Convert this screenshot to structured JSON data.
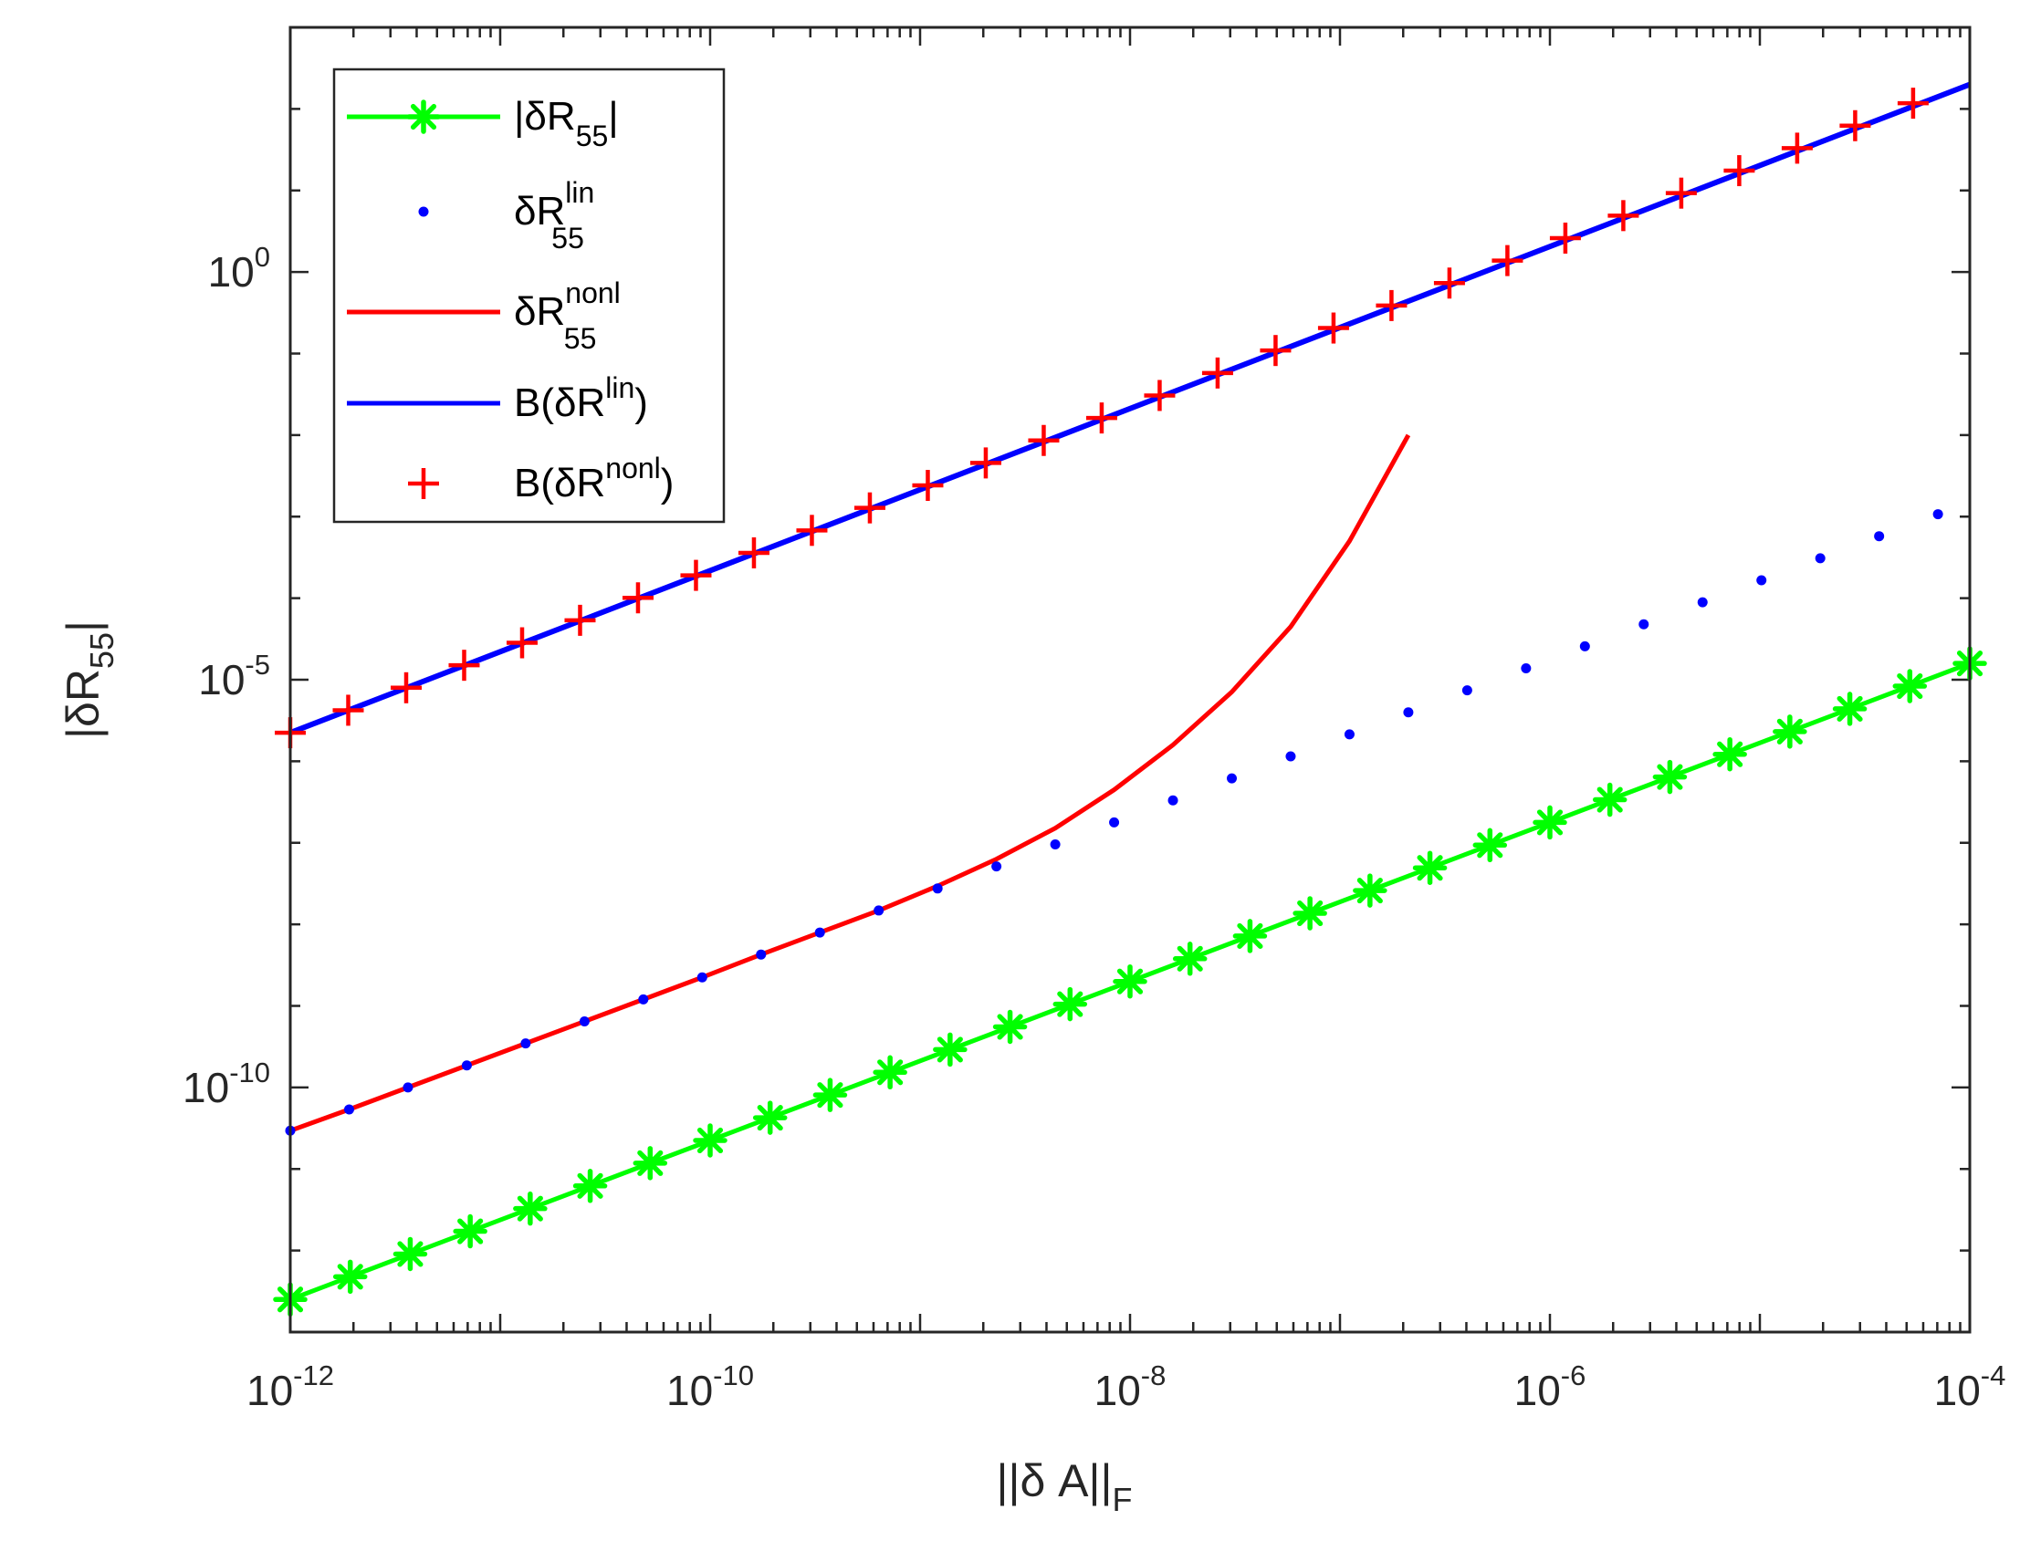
{
  "chart_data": {
    "type": "line",
    "xscale": "log",
    "yscale": "log",
    "xlabel": "||δ A||",
    "xlabel_sub": "F",
    "ylabel": "|δR",
    "ylabel_sub": "55",
    "ylabel_end": "|",
    "xlim": [
      1e-12,
      0.0001
    ],
    "ylim": [
      1e-13,
      1000.0
    ],
    "grid": false,
    "legend_position": "top-left",
    "x_ticks": [
      {
        "base": "10",
        "exp": "-12"
      },
      {
        "base": "10",
        "exp": "-10"
      },
      {
        "base": "10",
        "exp": "-8"
      },
      {
        "base": "10",
        "exp": "-6"
      },
      {
        "base": "10",
        "exp": "-4"
      }
    ],
    "y_ticks": [
      {
        "base": "10",
        "exp": "-10"
      },
      {
        "base": "10",
        "exp": "-5"
      },
      {
        "base": "10",
        "exp": "0"
      }
    ],
    "x_log_start": -12,
    "x_log_step": 0.2803,
    "series": [
      {
        "name": "|δR55|",
        "legend": {
          "prefix": "|δR",
          "sub": "55",
          "sup": "",
          "suffix": "|"
        },
        "style": "line-star",
        "color": "#00ff00",
        "x_range": [
          -12,
          -4
        ],
        "y_range": [
          -12.6,
          -4.8
        ]
      },
      {
        "name": "δR55 lin",
        "legend": {
          "prefix": "δR",
          "sub": "55",
          "sup": "lin",
          "suffix": ""
        },
        "style": "dots",
        "color": "#0000ff",
        "log_values": [
          -10.53,
          -10.27,
          -10.0,
          -9.73,
          -9.46,
          -9.19,
          -8.92,
          -8.65,
          -8.37,
          -8.1,
          -7.83,
          -7.56,
          -7.29,
          -7.02,
          -6.75,
          -6.48,
          -6.21,
          -5.94,
          -5.67,
          -5.4,
          -5.13,
          -4.86,
          -4.59,
          -4.32,
          -4.05,
          -3.78,
          -3.51,
          -3.24,
          -2.97
        ]
      },
      {
        "name": "δR55 nonl",
        "legend": {
          "prefix": "δR",
          "sub": "55",
          "sup": "nonl",
          "suffix": ""
        },
        "style": "line",
        "color": "#ff0000",
        "log_values": [
          -10.53,
          -10.27,
          -10.0,
          -9.73,
          -9.46,
          -9.19,
          -8.92,
          -8.65,
          -8.37,
          -8.1,
          -7.83,
          -7.53,
          -7.2,
          -6.82,
          -6.35,
          -5.8,
          -5.15,
          -4.35,
          -3.3,
          -2.0
        ]
      },
      {
        "name": "B(δR lin)",
        "legend": {
          "prefix": "B(δR",
          "sub": "",
          "sup": "lin",
          "suffix": ")"
        },
        "style": "line",
        "color": "#0000ff",
        "x_range": [
          -12,
          -4
        ],
        "y_range": [
          -5.65,
          2.3
        ]
      },
      {
        "name": "B(δR nonl)",
        "legend": {
          "prefix": "B(δR",
          "sub": "",
          "sup": "nonl",
          "suffix": ")"
        },
        "style": "plus",
        "color": "#ff0000",
        "x_range": [
          -12,
          -4.27
        ],
        "y_range": [
          -5.65,
          2.07
        ]
      }
    ]
  }
}
